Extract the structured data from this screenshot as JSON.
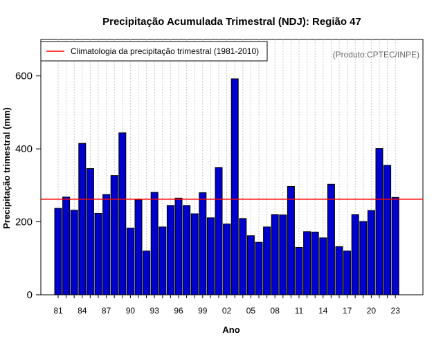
{
  "chart_data": {
    "type": "bar",
    "title": "Precipitação Acumulada Trimestral (NDJ): Região 47",
    "xlabel": "Ano",
    "ylabel": "Precipitação trimestral (mm)",
    "source_note": "(Produto:CPTEC/INPE)",
    "ylim": [
      0,
      700
    ],
    "yticks": [
      0,
      200,
      400,
      600
    ],
    "categories": [
      "81",
      "82",
      "83",
      "84",
      "85",
      "86",
      "87",
      "88",
      "89",
      "90",
      "91",
      "92",
      "93",
      "94",
      "95",
      "96",
      "97",
      "98",
      "99",
      "00",
      "01",
      "02",
      "03",
      "04",
      "05",
      "06",
      "07",
      "08",
      "09",
      "10",
      "11",
      "12",
      "13",
      "14",
      "15",
      "16",
      "17",
      "18",
      "19",
      "20",
      "21",
      "22",
      "23"
    ],
    "xtick_labels": [
      "81",
      "84",
      "87",
      "90",
      "93",
      "96",
      "99",
      "02",
      "05",
      "08",
      "11",
      "14",
      "17",
      "20",
      "23"
    ],
    "values": [
      237,
      268,
      232,
      415,
      346,
      223,
      275,
      327,
      444,
      183,
      260,
      120,
      281,
      186,
      245,
      265,
      245,
      222,
      280,
      211,
      349,
      194,
      592,
      209,
      162,
      144,
      186,
      220,
      219,
      297,
      130,
      173,
      172,
      156,
      303,
      132,
      120,
      220,
      201,
      231,
      401,
      355,
      267
    ],
    "reference_line": {
      "label": "Climatologia da precipitação trimestral (1981-2010)",
      "value": 262,
      "color": "#ff0000"
    },
    "bar_color": "#0000cd",
    "grid": "vertical-dashed",
    "legend_position": "top-left"
  }
}
